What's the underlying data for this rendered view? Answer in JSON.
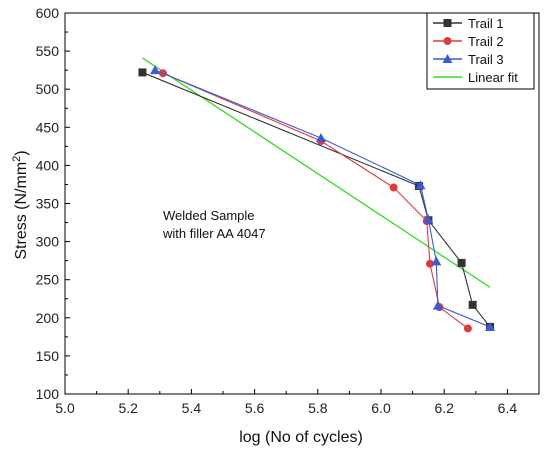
{
  "chart_data": {
    "type": "line",
    "xlabel": "log (No of cycles)",
    "ylabel_main": "Stress (N/mm",
    "ylabel_sup": "2",
    "ylabel_close": ")",
    "xlim": [
      5.0,
      6.5
    ],
    "ylim": [
      100,
      600
    ],
    "xticks": [
      5.0,
      5.2,
      5.4,
      5.6,
      5.8,
      6.0,
      6.2,
      6.4
    ],
    "yticks": [
      100,
      150,
      200,
      250,
      300,
      350,
      400,
      450,
      500,
      550,
      600
    ],
    "xtick_labels": [
      "5.0",
      "5.2",
      "5.4",
      "5.6",
      "5.8",
      "6.0",
      "6.2",
      "6.4"
    ],
    "ytick_labels": [
      "100",
      "150",
      "200",
      "250",
      "300",
      "350",
      "400",
      "450",
      "500",
      "550",
      "600"
    ],
    "legend_position": "top-right",
    "annotation": [
      "Welded Sample",
      "with filler AA 4047"
    ],
    "series": [
      {
        "name": "Trail 1",
        "color": "#333333",
        "marker": "square",
        "x": [
          5.245,
          6.12,
          6.15,
          6.255,
          6.29,
          6.345
        ],
        "y": [
          522,
          373,
          328,
          272,
          217,
          188
        ]
      },
      {
        "name": "Trail 2",
        "color": "#e03a3a",
        "marker": "circle",
        "x": [
          5.31,
          5.81,
          6.04,
          6.145,
          6.155,
          6.185,
          6.275
        ],
        "y": [
          521,
          432,
          371,
          327,
          271,
          214,
          186
        ]
      },
      {
        "name": "Trail 3",
        "color": "#3b5bd6",
        "marker": "triangle",
        "x": [
          5.285,
          5.81,
          6.125,
          6.15,
          6.175,
          6.18,
          6.345
        ],
        "y": [
          525,
          436,
          374,
          329,
          274,
          216,
          188
        ]
      },
      {
        "name": "Linear fit",
        "color": "#33dd22",
        "marker": "none",
        "x": [
          5.245,
          6.345
        ],
        "y": [
          541,
          240
        ]
      }
    ]
  }
}
